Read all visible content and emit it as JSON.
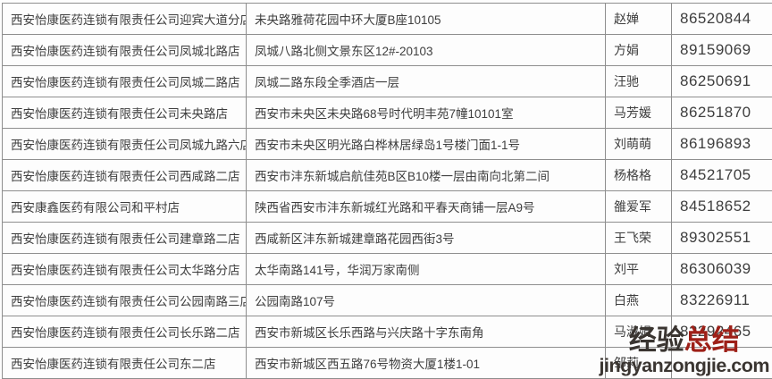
{
  "table": {
    "rows": [
      {
        "store": "西安怡康医药连锁有限责任公司迎宾大道分店",
        "address": "未央路雅荷花园中环大厦B座10105",
        "contact": "赵婵",
        "phone": "86520844"
      },
      {
        "store": "西安怡康医药连锁有限责任公司凤城北路店",
        "address": "凤城八路北侧文景东区12#-20103",
        "contact": "方娟",
        "phone": "89159069"
      },
      {
        "store": "西安怡康医药连锁有限责任公司凤城二路店",
        "address": "凤城二路东段全季酒店一层",
        "contact": "汪驰",
        "phone": "86250691"
      },
      {
        "store": "西安怡康医药连锁有限责任公司未央路店",
        "address": "西安市未央区未央路68号时代明丰苑7幢10101室",
        "contact": "马芳媛",
        "phone": "86251870"
      },
      {
        "store": "西安怡康医药连锁有限责任公司凤城九路六店",
        "address": "西安市未央区明光路白桦林居绿岛1号楼门面1-1号",
        "contact": "刘萌萌",
        "phone": "86196893"
      },
      {
        "store": "西安怡康医药连锁有限责任公司西咸路二店",
        "address": "西安市沣东新城启航佳苑B区B10楼一层由南向北第二间",
        "contact": "杨格格",
        "phone": "84521705"
      },
      {
        "store": "西安康鑫医药有限公司和平村店",
        "address": "陕西省西安市沣东新城红光路和平春天商铺一层A9号",
        "contact": "雒爱军",
        "phone": "84518652"
      },
      {
        "store": "西安怡康医药连锁有限责任公司建章路二店",
        "address": "西咸新区沣东新城建章路花园西街3号",
        "contact": "王飞荣",
        "phone": "89302551"
      },
      {
        "store": "西安怡康医药连锁有限责任公司太华路分店",
        "address": "太华南路141号，华润万家南侧",
        "contact": "刘平",
        "phone": "86306039"
      },
      {
        "store": "西安怡康医药连锁有限责任公司公园南路三店",
        "address": "公园南路107号",
        "contact": "白燕",
        "phone": "83226911"
      },
      {
        "store": "西安怡康医药连锁有限责任公司长乐路二店",
        "address": "西安市新城区长乐西路与兴庆路十字东南角",
        "contact": "马淑娟",
        "phone": "82292465"
      },
      {
        "store": "西安怡康医药连锁有限责任公司东二店",
        "address": "西安市新城区西五路76号物资大厦1楼1-01",
        "contact": "邹莉",
        "phone": ""
      }
    ]
  },
  "watermark": {
    "text_dark": "经验",
    "text_red": "总结",
    "url": "jingyanzongjie.com",
    "dark_color": "#3a3531",
    "red_color": "#9e2018"
  },
  "colors": {
    "table_border": "#8e8e8e",
    "text": "#3e3e3e",
    "background": "#fdfdfd"
  }
}
